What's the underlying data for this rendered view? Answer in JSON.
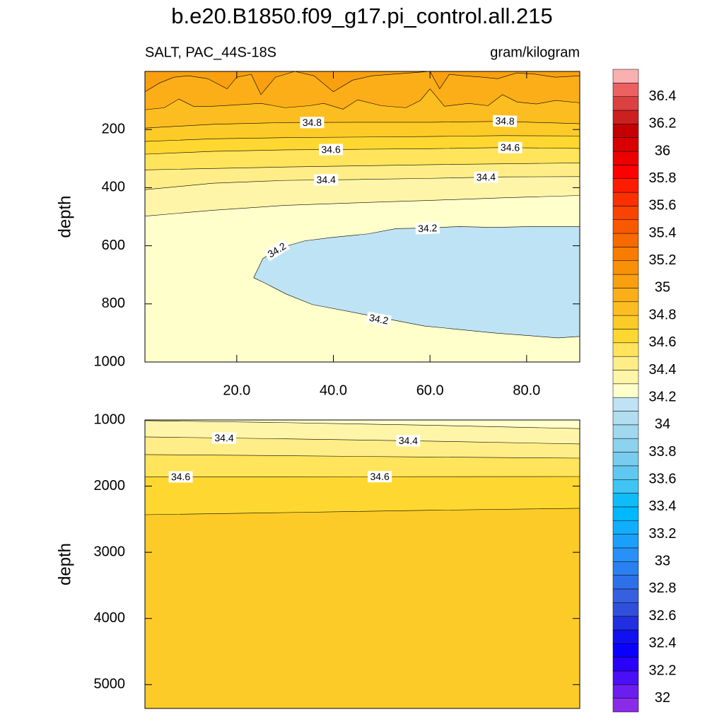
{
  "chart_data": [
    {
      "type": "contour",
      "title": "b.e20.B1850.f09_g17.pi_control.all.215",
      "left_string": "SALT, PAC_44S-18S",
      "right_string": "gram/kilogram",
      "ylabel": "depth",
      "xlim": [
        1,
        91
      ],
      "ylim": [
        0,
        1000
      ],
      "xticks": [
        {
          "value": 20,
          "label": "20.0"
        },
        {
          "value": 40,
          "label": "40.0"
        },
        {
          "value": 60,
          "label": "60.0"
        },
        {
          "value": 80,
          "label": "80.0"
        }
      ],
      "yticks": [
        200,
        400,
        600,
        800,
        1000
      ],
      "contours": [
        {
          "level": 34.3,
          "x": [
            1,
            15,
            30,
            45,
            60,
            75,
            91
          ],
          "y": [
            498,
            478,
            461,
            452,
            444,
            435,
            427
          ],
          "labels": []
        },
        {
          "level": 34.4,
          "x": [
            1,
            15,
            30,
            45,
            60,
            75,
            91
          ],
          "y": [
            407,
            385,
            375,
            372,
            368,
            363,
            362
          ],
          "labels": [
            {
              "x": 38.5,
              "y": 373
            },
            {
              "x": 71.6,
              "y": 364
            }
          ]
        },
        {
          "level": 34.5,
          "x": [
            1,
            15,
            30,
            45,
            60,
            75,
            91
          ],
          "y": [
            339,
            334,
            329,
            325,
            321,
            318,
            315
          ],
          "labels": []
        },
        {
          "level": 34.6,
          "x": [
            1,
            15,
            30,
            45,
            60,
            75,
            91
          ],
          "y": [
            285,
            275,
            270,
            268,
            266,
            262,
            265
          ],
          "labels": [
            {
              "x": 39.5,
              "y": 269
            },
            {
              "x": 76.6,
              "y": 262
            }
          ]
        },
        {
          "level": 34.7,
          "x": [
            1,
            15,
            30,
            45,
            60,
            75,
            91
          ],
          "y": [
            241,
            232,
            228,
            226,
            224,
            221,
            222
          ],
          "labels": []
        },
        {
          "level": 34.8,
          "x": [
            1,
            15,
            30,
            45,
            60,
            75,
            91
          ],
          "y": [
            195,
            182,
            176,
            175,
            175,
            172,
            180
          ],
          "labels": [
            {
              "x": 35.6,
              "y": 176
            },
            {
              "x": 75.5,
              "y": 171
            }
          ]
        },
        {
          "level": 34.9,
          "x": [
            1,
            5,
            8,
            11,
            15,
            20,
            25,
            30,
            35,
            38,
            42,
            45,
            50,
            55,
            58,
            60,
            63,
            68,
            72,
            75,
            78,
            82,
            86,
            91
          ],
          "y": [
            132,
            125,
            95,
            120,
            120,
            115,
            110,
            125,
            118,
            110,
            130,
            98,
            118,
            125,
            100,
            60,
            120,
            110,
            118,
            80,
            105,
            112,
            100,
            108
          ],
          "labels": []
        },
        {
          "level": 35,
          "x": [
            1,
            4,
            7,
            10,
            14,
            18,
            20,
            23,
            25,
            28,
            32,
            36,
            40,
            44,
            48,
            52,
            56,
            60,
            62,
            64,
            67,
            71,
            74,
            78,
            82,
            86,
            91
          ],
          "y": [
            70,
            40,
            20,
            15,
            25,
            60,
            20,
            10,
            80,
            20,
            0,
            15,
            70,
            30,
            15,
            10,
            5,
            0,
            60,
            10,
            15,
            20,
            25,
            5,
            10,
            20,
            15
          ],
          "labels": []
        },
        {
          "level": 34.2,
          "closed": true,
          "x": [
            23.5,
            25.4,
            29.0,
            34.1,
            39.9,
            47.2,
            53.0,
            58.8,
            66.1,
            73.3,
            80.6,
            87.9,
            91,
            91,
            86.5,
            73.3,
            58.8,
            47.2,
            35.6,
            30.2,
            25.9,
            23.5
          ],
          "y": [
            710,
            644,
            607,
            583,
            571,
            559,
            541,
            539,
            534,
            537,
            534,
            534,
            534,
            912,
            917,
            900,
            876,
            839,
            802,
            766,
            729,
            710
          ],
          "labels": [
            {
              "x": 28.3,
              "y": 615
            },
            {
              "x": 59.5,
              "y": 540
            },
            {
              "x": 49.4,
              "y": 853
            }
          ]
        }
      ]
    },
    {
      "type": "contour",
      "ylabel": "depth",
      "xlim": [
        1,
        91
      ],
      "ylim": [
        1000,
        5360
      ],
      "yticks": [
        1000,
        2000,
        3000,
        4000,
        5000
      ],
      "contours": [
        {
          "level": 34.3,
          "x": [
            1,
            30,
            60,
            91
          ],
          "y": [
            1010,
            1040,
            1080,
            1130
          ],
          "labels": []
        },
        {
          "level": 34.4,
          "x": [
            1,
            30,
            60,
            91
          ],
          "y": [
            1256,
            1285,
            1320,
            1363
          ],
          "labels": [
            {
              "x": 17.4,
              "y": 1273
            },
            {
              "x": 55.5,
              "y": 1314
            }
          ]
        },
        {
          "level": 34.5,
          "x": [
            1,
            30,
            60,
            91
          ],
          "y": [
            1523,
            1540,
            1560,
            1577
          ],
          "labels": []
        },
        {
          "level": 34.6,
          "x": [
            1,
            30,
            60,
            91
          ],
          "y": [
            1860,
            1858,
            1857,
            1855
          ],
          "labels": [
            {
              "x": 8.4,
              "y": 1860
            },
            {
              "x": 49.6,
              "y": 1857
            }
          ]
        },
        {
          "level": 34.7,
          "x": [
            1,
            30,
            60,
            91
          ],
          "y": [
            2432,
            2400,
            2365,
            2335
          ],
          "labels": []
        }
      ]
    }
  ],
  "colorbar": {
    "levels": [
      31.9,
      32,
      32.1,
      32.2,
      32.3,
      32.4,
      32.5,
      32.6,
      32.7,
      32.8,
      32.9,
      33,
      33.1,
      33.2,
      33.3,
      33.4,
      33.5,
      33.6,
      33.7,
      33.8,
      33.9,
      34,
      34.1,
      34.2,
      34.3,
      34.4,
      34.5,
      34.6,
      34.7,
      34.8,
      34.9,
      35,
      35.1,
      35.2,
      35.3,
      35.4,
      35.5,
      35.6,
      35.7,
      35.8,
      35.9,
      36,
      36.1,
      36.2,
      36.3,
      36.4,
      36.5,
      36.6
    ],
    "colors": [
      "#8b2be8",
      "#6a1ff0",
      "#4a10f5",
      "#2a00fa",
      "#0a00ff",
      "#1010f0",
      "#2030e0",
      "#3050dc",
      "#3560e0",
      "#2e70e8",
      "#2a80f0",
      "#2890f6",
      "#1aa0fa",
      "#10aefc",
      "#00b8fe",
      "#10bcf8",
      "#40c4f4",
      "#60c8f0",
      "#78ccee",
      "#8cd2ec",
      "#a0d8ee",
      "#b0ddf0",
      "#bee3f4",
      "#ffffcc",
      "#fff5a8",
      "#ffee88",
      "#ffe45c",
      "#fed830",
      "#fdcb28",
      "#fcbd20",
      "#fbae18",
      "#f9a010",
      "#f89008",
      "#f77c00",
      "#f76a00",
      "#f75800",
      "#f84400",
      "#fa3000",
      "#fc1c00",
      "#ff0000",
      "#ec0000",
      "#d80000",
      "#c40000",
      "#cc2020",
      "#dc4040",
      "#ec6060",
      "#f8b0b0"
    ],
    "ticks": [
      32,
      32.2,
      32.4,
      32.6,
      32.8,
      33,
      33.2,
      33.4,
      33.6,
      33.8,
      34,
      34.2,
      34.4,
      34.6,
      34.8,
      35,
      35.2,
      35.4,
      35.6,
      35.8,
      36,
      36.2,
      36.4
    ]
  }
}
